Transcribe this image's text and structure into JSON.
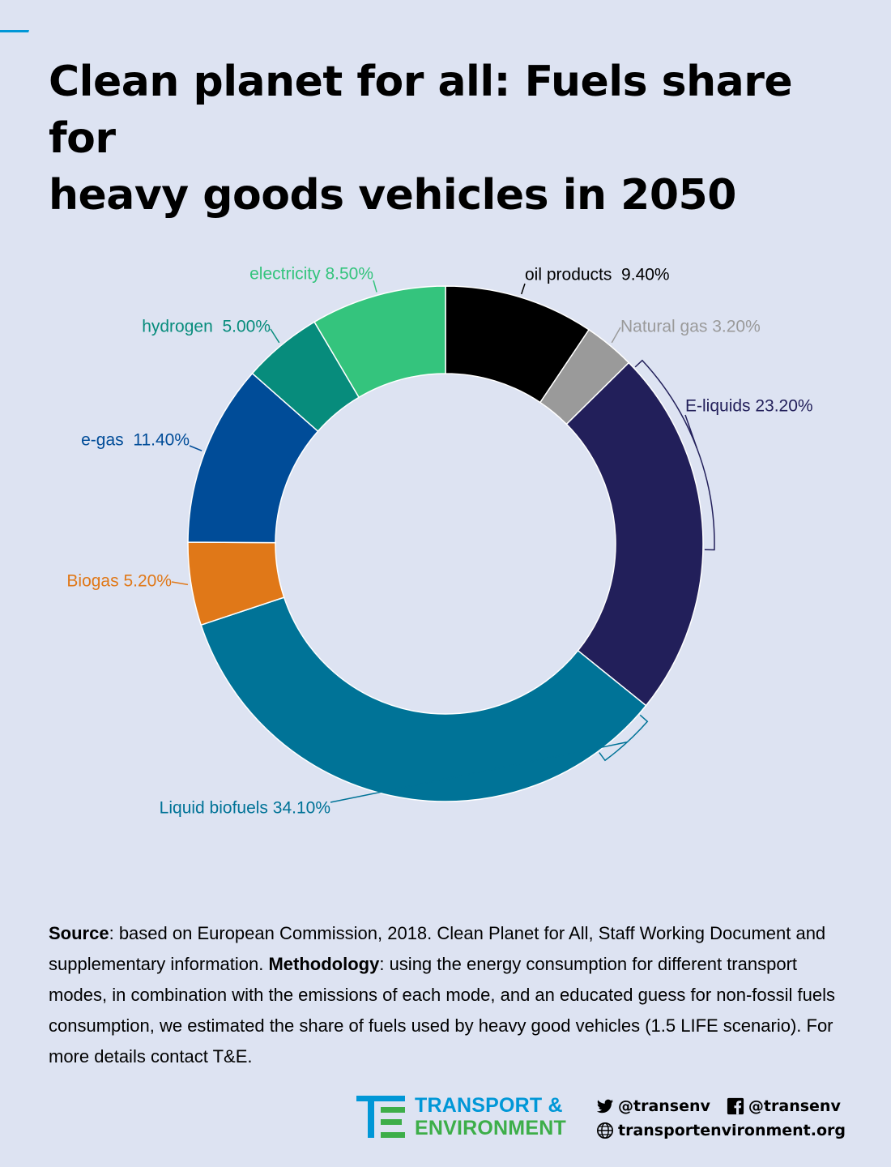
{
  "title_line1": "Clean planet for all: Fuels share for",
  "title_line2": "heavy goods vehicles in 2050",
  "colors": {
    "background": "#dde3f2",
    "accent": "#0097d7"
  },
  "chart_data": {
    "type": "pie",
    "variant": "donut",
    "slices": [
      {
        "label": "oil products  9.40%",
        "value": 9.4,
        "color": "#000000",
        "label_color": "#000000"
      },
      {
        "label": "Natural gas 3.20%",
        "value": 3.2,
        "color": "#9a9a9a",
        "label_color": "#9a9a9a"
      },
      {
        "label": "E-liquids 23.20%",
        "value": 23.2,
        "color": "#221f5a",
        "label_color": "#221f5a"
      },
      {
        "label": "Liquid biofuels 34.10%",
        "value": 34.1,
        "color": "#007397",
        "label_color": "#007397"
      },
      {
        "label": "Biogas 5.20%",
        "value": 5.2,
        "color": "#e07818",
        "label_color": "#e07818"
      },
      {
        "label": "e-gas  11.40%",
        "value": 11.4,
        "color": "#004c98",
        "label_color": "#004c98"
      },
      {
        "label": "hydrogen  5.00%",
        "value": 5.0,
        "color": "#078c7c",
        "label_color": "#078c7c"
      },
      {
        "label": "electricity 8.50%",
        "value": 8.5,
        "color": "#34c47d",
        "label_color": "#34c47d"
      }
    ]
  },
  "footnote": {
    "source_label": "Source",
    "source_text": ": based on European Commission, 2018. Clean Planet for All, Staff Working Document and supplementary information. ",
    "method_label": "Methodology",
    "method_text": ": using the energy consumption for different transport modes, in combination with the emissions of each mode, and an educated guess for non-fossil fuels consumption,  we estimated the share of fuels used by heavy good vehicles (1.5 LIFE scenario). For more details contact T&E."
  },
  "footer": {
    "logo_line1": "TRANSPORT &",
    "logo_line2": "ENVIRONMENT",
    "logo_color1": "#0097d7",
    "logo_color2": "#3dae49",
    "twitter": "@transenv",
    "facebook": "@transenv",
    "website": "transportenvironment.org",
    "twitter_icon": "twitter-icon",
    "facebook_icon": "facebook-icon",
    "globe_icon": "globe-icon"
  }
}
